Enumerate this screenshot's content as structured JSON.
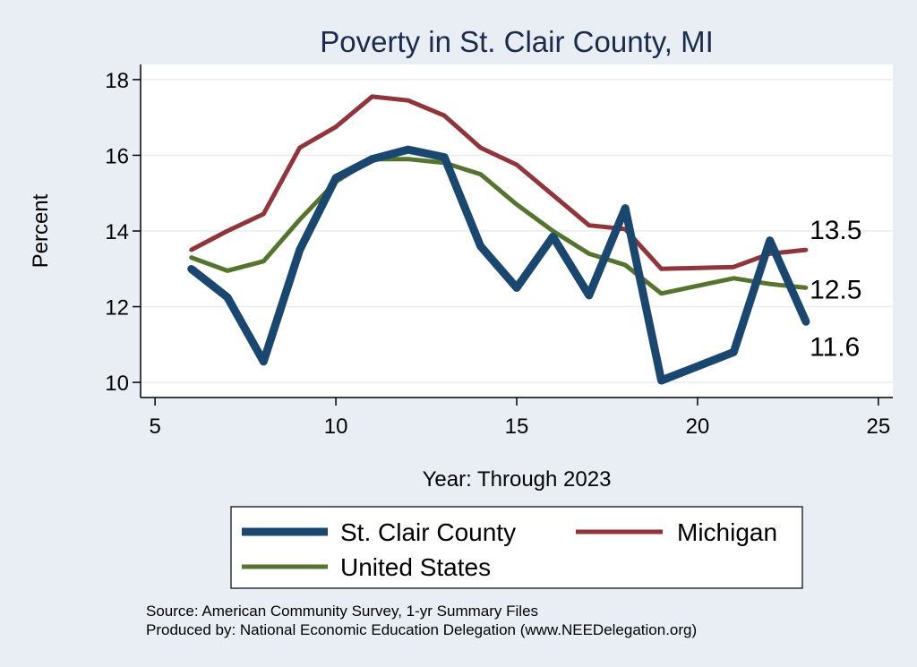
{
  "chart_data": {
    "type": "line",
    "title": "Poverty in St. Clair County, MI",
    "xlabel": "Year: Through 2023",
    "ylabel": "Percent",
    "xlim": [
      4.6,
      25.4
    ],
    "ylim": [
      9.6,
      18.4
    ],
    "xticks": [
      5,
      10,
      15,
      20,
      25
    ],
    "yticks": [
      10,
      12,
      14,
      16,
      18
    ],
    "grid": true,
    "series": [
      {
        "name": "St. Clair County",
        "color": "#1a476f",
        "x": [
          6,
          7,
          8,
          9,
          10,
          11,
          12,
          13,
          14,
          15,
          16,
          17,
          18,
          19,
          21,
          22,
          23
        ],
        "values": [
          13.0,
          12.25,
          10.55,
          13.5,
          15.4,
          15.9,
          16.15,
          15.95,
          13.6,
          12.5,
          13.85,
          12.3,
          14.6,
          10.05,
          10.8,
          13.75,
          11.6
        ],
        "end_label": "11.6"
      },
      {
        "name": "Michigan",
        "color": "#90353b",
        "x": [
          6,
          7,
          8,
          9,
          10,
          11,
          12,
          13,
          14,
          15,
          16,
          17,
          18,
          19,
          21,
          22,
          23
        ],
        "values": [
          13.5,
          14.0,
          14.45,
          16.2,
          16.75,
          17.55,
          17.45,
          17.05,
          16.2,
          15.75,
          14.95,
          14.15,
          14.05,
          13.0,
          13.05,
          13.4,
          13.5
        ],
        "end_label": "13.5"
      },
      {
        "name": "United States",
        "color": "#55752f",
        "x": [
          6,
          7,
          8,
          9,
          10,
          11,
          12,
          13,
          14,
          15,
          16,
          17,
          18,
          19,
          21,
          22,
          23
        ],
        "values": [
          13.3,
          12.95,
          13.2,
          14.3,
          15.3,
          15.9,
          15.9,
          15.8,
          15.5,
          14.7,
          14.0,
          13.4,
          13.1,
          12.35,
          12.75,
          12.6,
          12.5
        ],
        "end_label": "12.5"
      }
    ]
  },
  "source": {
    "line1": "Source: American Community Survey, 1-yr Summary Files",
    "line2": "Produced by: National Economic Education Delegation (www.NEEDelegation.org)"
  }
}
